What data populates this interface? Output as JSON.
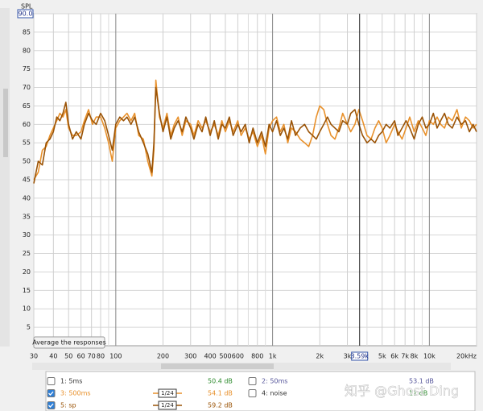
{
  "chart_data": {
    "type": "line",
    "y_label": "SPL",
    "xscale": "log",
    "xlim": [
      30,
      20000
    ],
    "ylim": [
      0,
      90
    ],
    "xticks": [
      30,
      40,
      50,
      60,
      70,
      80,
      100,
      200,
      300,
      400,
      500,
      600,
      800,
      {
        "value": 1000,
        "label": "1k"
      },
      {
        "value": 2000,
        "label": "2k"
      },
      {
        "value": 3000,
        "label": "3k"
      },
      {
        "value": 5000,
        "label": "5k"
      },
      {
        "value": 6000,
        "label": "6k"
      },
      {
        "value": 7000,
        "label": "7k"
      },
      {
        "value": 8000,
        "label": "8k"
      },
      {
        "value": 10000,
        "label": "10k"
      },
      {
        "value": 20000,
        "label": "20kHz"
      }
    ],
    "x_minor_grid": [
      90,
      700,
      900,
      4000,
      9000
    ],
    "yticks": [
      5,
      10,
      15,
      20,
      25,
      30,
      35,
      40,
      45,
      50,
      55,
      60,
      65,
      70,
      75,
      80,
      85,
      {
        "value": 90,
        "label": "90.0"
      }
    ],
    "cursor": {
      "value": 3590,
      "label": "3.59k"
    },
    "grid": true,
    "x": [
      30,
      32,
      34,
      36,
      38,
      40,
      42,
      44,
      46,
      48,
      50,
      53,
      56,
      60,
      63,
      67,
      71,
      75,
      80,
      85,
      90,
      95,
      100,
      106,
      112,
      118,
      125,
      132,
      140,
      150,
      160,
      170,
      175,
      180,
      190,
      200,
      212,
      224,
      236,
      250,
      265,
      280,
      300,
      315,
      335,
      355,
      375,
      400,
      425,
      450,
      475,
      500,
      530,
      560,
      600,
      630,
      670,
      710,
      750,
      800,
      850,
      900,
      950,
      1000,
      1060,
      1120,
      1180,
      1250,
      1320,
      1400,
      1500,
      1600,
      1700,
      1800,
      1900,
      2000,
      2120,
      2240,
      2360,
      2500,
      2650,
      2800,
      3000,
      3150,
      3350,
      3550,
      3750,
      4000,
      4250,
      4500,
      4750,
      5000,
      5300,
      5600,
      6000,
      6300,
      6700,
      7100,
      7500,
      8000,
      8500,
      9000,
      9500,
      10000,
      10600,
      11200,
      11800,
      12500,
      13200,
      14000,
      15000,
      16000,
      17000,
      18000,
      19000,
      20000
    ],
    "series": [
      {
        "name": "3: 500ms",
        "color": "#e8912c",
        "values": [
          45,
          47,
          53,
          54,
          57,
          59,
          61,
          63,
          62,
          64,
          59,
          57,
          57,
          58,
          61,
          64,
          60,
          62,
          62,
          59,
          55,
          50,
          59,
          61,
          62,
          63,
          61,
          63,
          57,
          56,
          50,
          46,
          53,
          72,
          62,
          59,
          63,
          57,
          60,
          62,
          57,
          61,
          60,
          57,
          61,
          59,
          61,
          58,
          60,
          57,
          61,
          58,
          61,
          58,
          61,
          57,
          59,
          56,
          58,
          54,
          57,
          52,
          59,
          61,
          62,
          58,
          60,
          55,
          59,
          58,
          56,
          55,
          54,
          57,
          62,
          65,
          64,
          60,
          57,
          56,
          59,
          63,
          60,
          58,
          60,
          64,
          61,
          57,
          56,
          59,
          61,
          59,
          55,
          57,
          60,
          58,
          56,
          59,
          62,
          58,
          61,
          59,
          57,
          61,
          60,
          62,
          60,
          59,
          62,
          61,
          64,
          59,
          62,
          61,
          59,
          60
        ]
      },
      {
        "name": "5: sp",
        "color": "#9a5306",
        "values": [
          44,
          50,
          49,
          55,
          56,
          58,
          62,
          61,
          63,
          66,
          60,
          56,
          58,
          56,
          60,
          63,
          61,
          60,
          63,
          61,
          57,
          53,
          60,
          62,
          61,
          62,
          60,
          62,
          58,
          55,
          52,
          47,
          55,
          70,
          63,
          58,
          62,
          56,
          59,
          61,
          58,
          62,
          59,
          56,
          60,
          58,
          62,
          57,
          61,
          56,
          60,
          59,
          62,
          57,
          60,
          58,
          60,
          55,
          59,
          55,
          58,
          54,
          60,
          58,
          61,
          57,
          59,
          56,
          61,
          57,
          59,
          60,
          58,
          57,
          56,
          58,
          60,
          62,
          60,
          59,
          58,
          61,
          60,
          63,
          64,
          60,
          57,
          55,
          56,
          55,
          57,
          58,
          60,
          59,
          61,
          57,
          59,
          61,
          59,
          56,
          60,
          62,
          59,
          60,
          63,
          59,
          61,
          63,
          60,
          59,
          62,
          60,
          61,
          58,
          60,
          58
        ]
      }
    ]
  },
  "button": "Average the responses",
  "legend": [
    {
      "label": "1: 5ms",
      "checked": false,
      "color": "#333333",
      "level": "50.4 dB",
      "level_color": "#2e8b2e"
    },
    {
      "label": "2: 50ms",
      "checked": false,
      "color": "#55559a",
      "level": "53.1 dB",
      "level_color": "#55559a"
    },
    {
      "label": "3: 500ms",
      "checked": true,
      "color": "#e8912c",
      "smoothing": "1/24",
      "level": "54.1 dB",
      "level_color": "#e8912c"
    },
    {
      "label": "4: noise",
      "checked": false,
      "color": "#333333",
      "level": "11 dB",
      "level_color": "#2e8b2e"
    },
    {
      "label": "5: sp",
      "checked": true,
      "color": "#9a5306",
      "smoothing": "1/24",
      "level": "59.2 dB",
      "level_color": "#9a5306"
    }
  ],
  "watermark": "知乎 @Ghost Ding"
}
